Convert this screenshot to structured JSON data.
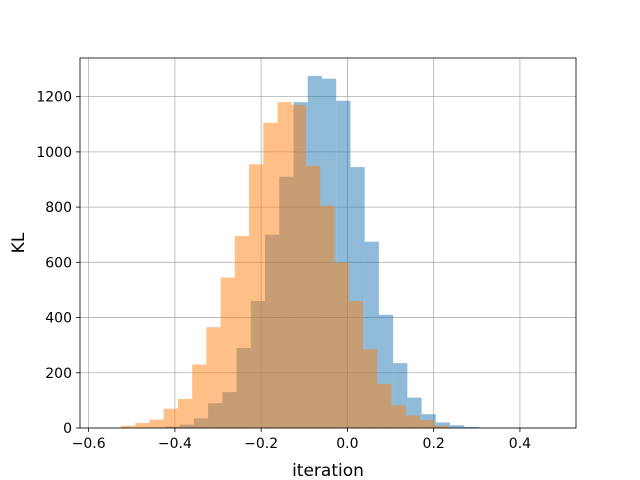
{
  "chart_data": {
    "type": "bar",
    "title": "",
    "xlabel": "iteration",
    "ylabel": "KL",
    "xlim": [
      -0.62,
      0.53
    ],
    "ylim": [
      0,
      1340
    ],
    "xticks": [
      -0.6,
      -0.4,
      -0.2,
      0.0,
      0.2,
      0.4
    ],
    "xtick_labels": [
      "−0.6",
      "−0.4",
      "−0.2",
      "0.0",
      "0.2",
      "0.4"
    ],
    "yticks": [
      0,
      200,
      400,
      600,
      800,
      1000,
      1200
    ],
    "ytick_labels": [
      "0",
      "200",
      "400",
      "600",
      "800",
      "1000",
      "1200"
    ],
    "grid": true,
    "legend": "none",
    "series": [
      {
        "color": "#1f77b4",
        "opacity": 0.5,
        "bins": [
          {
            "x0": -0.455,
            "x1": -0.422,
            "value": 2
          },
          {
            "x0": -0.422,
            "x1": -0.389,
            "value": 5
          },
          {
            "x0": -0.389,
            "x1": -0.356,
            "value": 12
          },
          {
            "x0": -0.356,
            "x1": -0.323,
            "value": 35
          },
          {
            "x0": -0.323,
            "x1": -0.29,
            "value": 90
          },
          {
            "x0": -0.29,
            "x1": -0.257,
            "value": 130
          },
          {
            "x0": -0.257,
            "x1": -0.224,
            "value": 290
          },
          {
            "x0": -0.224,
            "x1": -0.191,
            "value": 460
          },
          {
            "x0": -0.191,
            "x1": -0.158,
            "value": 700
          },
          {
            "x0": -0.158,
            "x1": -0.125,
            "value": 910
          },
          {
            "x0": -0.125,
            "x1": -0.092,
            "value": 1180
          },
          {
            "x0": -0.092,
            "x1": -0.059,
            "value": 1275
          },
          {
            "x0": -0.059,
            "x1": -0.026,
            "value": 1265
          },
          {
            "x0": -0.026,
            "x1": 0.007,
            "value": 1185
          },
          {
            "x0": 0.007,
            "x1": 0.04,
            "value": 945
          },
          {
            "x0": 0.04,
            "x1": 0.073,
            "value": 675
          },
          {
            "x0": 0.073,
            "x1": 0.106,
            "value": 410
          },
          {
            "x0": 0.106,
            "x1": 0.139,
            "value": 235
          },
          {
            "x0": 0.139,
            "x1": 0.172,
            "value": 110
          },
          {
            "x0": 0.172,
            "x1": 0.205,
            "value": 50
          },
          {
            "x0": 0.205,
            "x1": 0.238,
            "value": 20
          },
          {
            "x0": 0.238,
            "x1": 0.271,
            "value": 10
          },
          {
            "x0": 0.271,
            "x1": 0.304,
            "value": 4
          },
          {
            "x0": 0.304,
            "x1": 0.337,
            "value": 1
          }
        ]
      },
      {
        "color": "#ff7f0e",
        "opacity": 0.5,
        "bins": [
          {
            "x0": -0.525,
            "x1": -0.492,
            "value": 8
          },
          {
            "x0": -0.492,
            "x1": -0.459,
            "value": 18
          },
          {
            "x0": -0.459,
            "x1": -0.426,
            "value": 30
          },
          {
            "x0": -0.426,
            "x1": -0.393,
            "value": 70
          },
          {
            "x0": -0.393,
            "x1": -0.36,
            "value": 105
          },
          {
            "x0": -0.36,
            "x1": -0.327,
            "value": 230
          },
          {
            "x0": -0.327,
            "x1": -0.294,
            "value": 365
          },
          {
            "x0": -0.294,
            "x1": -0.261,
            "value": 545
          },
          {
            "x0": -0.261,
            "x1": -0.228,
            "value": 695
          },
          {
            "x0": -0.228,
            "x1": -0.195,
            "value": 955
          },
          {
            "x0": -0.195,
            "x1": -0.162,
            "value": 1105
          },
          {
            "x0": -0.162,
            "x1": -0.129,
            "value": 1180
          },
          {
            "x0": -0.129,
            "x1": -0.096,
            "value": 1170
          },
          {
            "x0": -0.096,
            "x1": -0.063,
            "value": 950
          },
          {
            "x0": -0.063,
            "x1": -0.03,
            "value": 805
          },
          {
            "x0": -0.03,
            "x1": 0.003,
            "value": 600
          },
          {
            "x0": 0.003,
            "x1": 0.036,
            "value": 460
          },
          {
            "x0": 0.036,
            "x1": 0.069,
            "value": 285
          },
          {
            "x0": 0.069,
            "x1": 0.102,
            "value": 160
          },
          {
            "x0": 0.102,
            "x1": 0.135,
            "value": 82
          },
          {
            "x0": 0.135,
            "x1": 0.168,
            "value": 45
          },
          {
            "x0": 0.168,
            "x1": 0.201,
            "value": 28
          },
          {
            "x0": 0.201,
            "x1": 0.234,
            "value": 8
          }
        ]
      }
    ]
  }
}
